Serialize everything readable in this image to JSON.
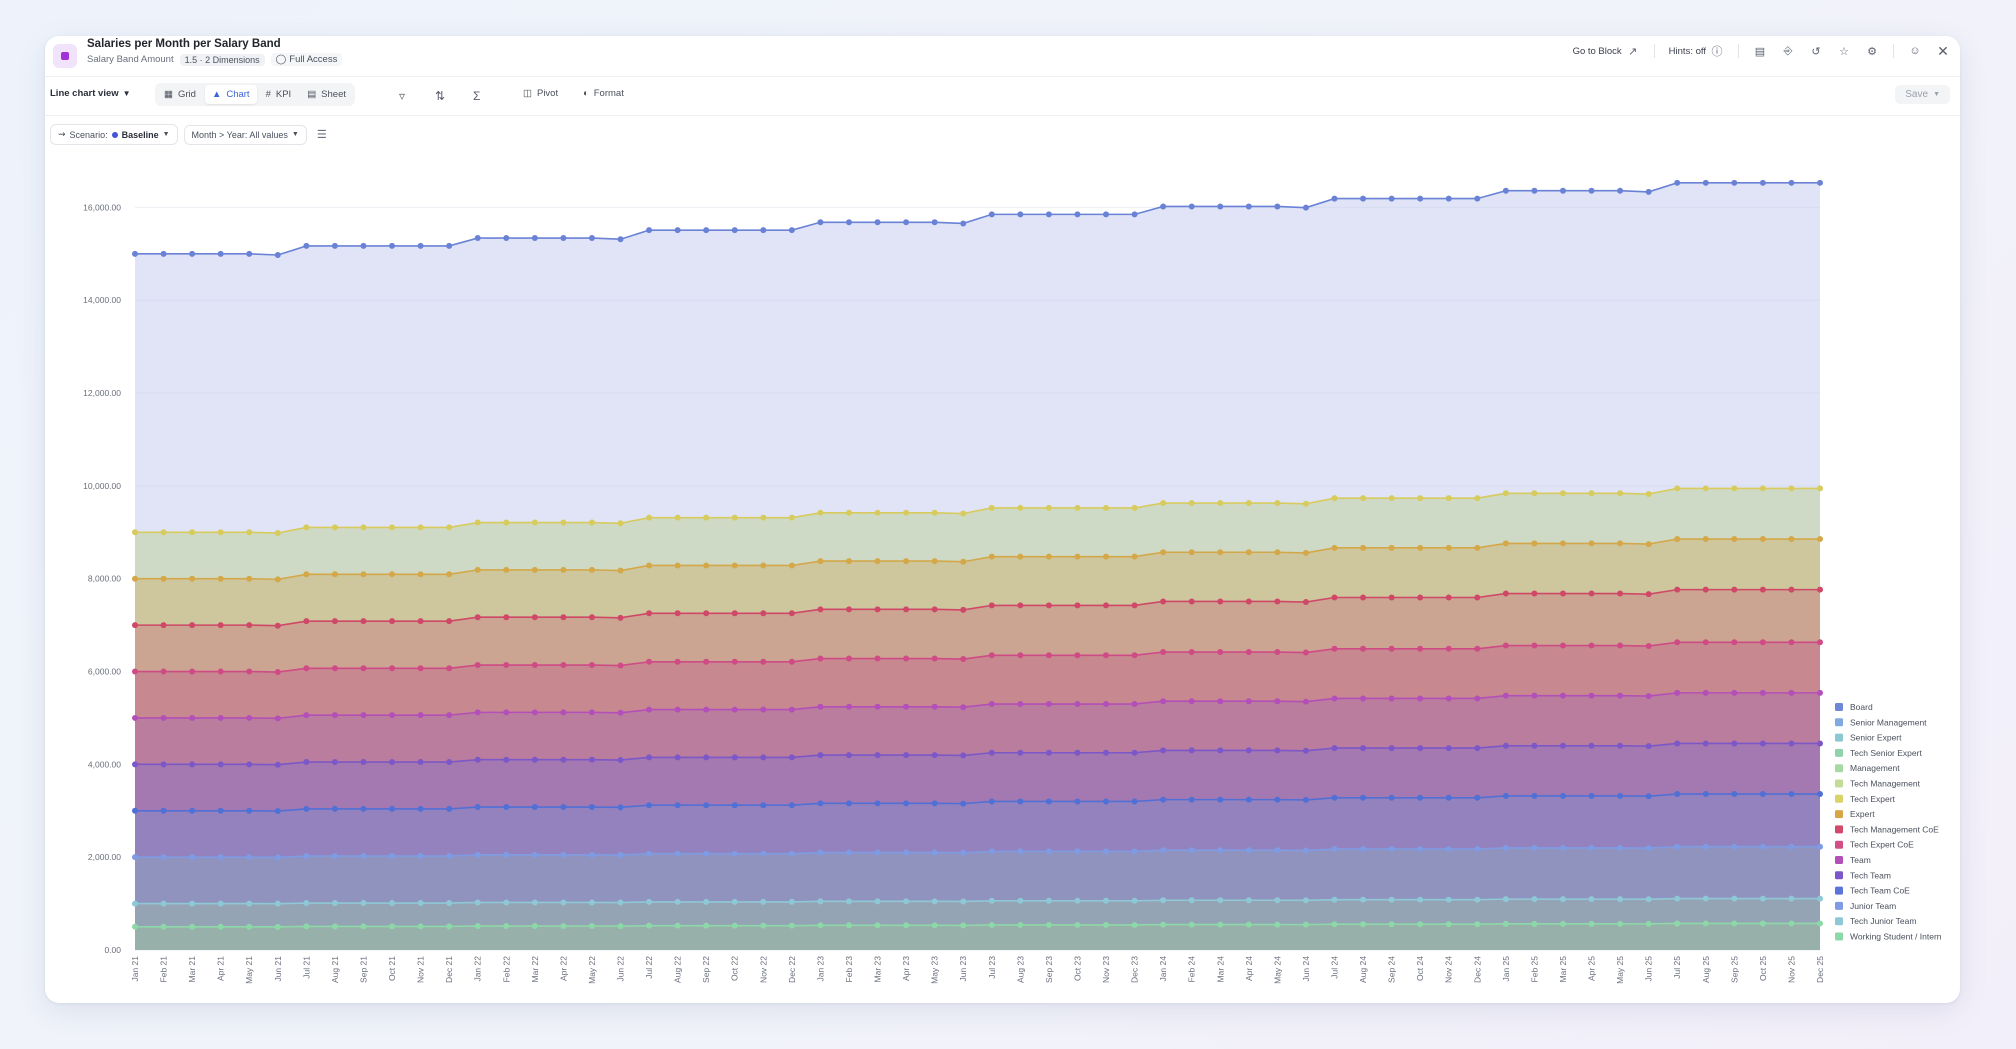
{
  "header": {
    "title": "Salaries per Month per Salary Band",
    "subtitle_prefix": "Salary Band Amount",
    "dims": "1.5 · 2 Dimensions",
    "access": "Full Access"
  },
  "top_tools": {
    "go_to_block": "Go to Block",
    "hints": "Hints: off",
    "icons": [
      "arrow-out-icon",
      "info-icon",
      "note-icon",
      "share-icon",
      "history-icon",
      "star-icon",
      "gear-icon",
      "user-settings-icon",
      "close-icon"
    ]
  },
  "toolbar": {
    "view_select": "Line chart view",
    "tabs": [
      {
        "label": "Grid",
        "icon": "grid-icon"
      },
      {
        "label": "Chart",
        "icon": "chart-icon"
      },
      {
        "label": "KPI",
        "icon": "hash-icon"
      },
      {
        "label": "Sheet",
        "icon": "sheet-icon"
      }
    ],
    "pivot": "Pivot",
    "format": "Format",
    "save": "Save"
  },
  "filters": {
    "scenario_label": "Scenario:",
    "scenario_value": "Baseline",
    "month_filter": "Month > Year: All values"
  },
  "colors": {
    "accent": "#3b63d9",
    "series": [
      "#6f87d6",
      "#7fa9df",
      "#8cc8d2",
      "#8fd3ad",
      "#a8d9a3",
      "#c4dc98",
      "#d9d36a",
      "#d8a546",
      "#d24a6b",
      "#d14f86",
      "#b250b8",
      "#7d57c9",
      "#5a74d9",
      "#7f9be3",
      "#8ec8d6",
      "#8dd8a8"
    ]
  },
  "chart_data": {
    "type": "area",
    "stacked": true,
    "x": [
      "Jan 21",
      "Feb 21",
      "Mar 21",
      "Apr 21",
      "May 21",
      "Jun 21",
      "Jul 21",
      "Aug 21",
      "Sep 21",
      "Oct 21",
      "Nov 21",
      "Dec 21",
      "Jan 22",
      "Feb 22",
      "Mar 22",
      "Apr 22",
      "May 22",
      "Jun 22",
      "Jul 22",
      "Aug 22",
      "Sep 22",
      "Oct 22",
      "Nov 22",
      "Dec 22",
      "Jan 23",
      "Feb 23",
      "Mar 23",
      "Apr 23",
      "May 23",
      "Jun 23",
      "Jul 23",
      "Aug 23",
      "Sep 23",
      "Oct 23",
      "Nov 23",
      "Dec 23",
      "Jan 24",
      "Feb 24",
      "Mar 24",
      "Apr 24",
      "May 24",
      "Jun 24",
      "Jul 24",
      "Aug 24",
      "Sep 24",
      "Oct 24",
      "Nov 24",
      "Dec 24",
      "Jan 25",
      "Feb 25",
      "Mar 25",
      "Apr 25",
      "May 25",
      "Jun 25",
      "Jul 25",
      "Aug 25",
      "Sep 25",
      "Oct 25",
      "Nov 25",
      "Dec 25"
    ],
    "ylim": [
      0,
      17000
    ],
    "yticks": [
      "0.00",
      "2,000.00",
      "4,000.00",
      "6,000.00",
      "8,000.00",
      "10,000.00",
      "12,000.00",
      "14,000.00",
      "16,000.00"
    ],
    "ytick_values": [
      0,
      2000,
      4000,
      6000,
      8000,
      10000,
      12000,
      14000,
      16000
    ],
    "legend_position": "right",
    "legend": [
      "Board",
      "Senior Management",
      "Senior Expert",
      "Tech Senior Expert",
      "Management",
      "Tech Management",
      "Tech Expert",
      "Expert",
      "Tech Management CoE",
      "Tech Expert CoE",
      "Team",
      "Tech Team",
      "Tech Team CoE",
      "Junior Team",
      "Tech Junior Team",
      "Working Student / Intern"
    ],
    "cumulative_lines": [
      {
        "name": "Board",
        "start": 15000,
        "step": 170
      },
      {
        "name": "Tech Expert",
        "start": 9000,
        "step": 105
      },
      {
        "name": "Expert",
        "start": 8000,
        "step": 95
      },
      {
        "name": "Tech Management CoE",
        "start": 7000,
        "step": 85
      },
      {
        "name": "Tech Expert CoE",
        "start": 6000,
        "step": 70
      },
      {
        "name": "Team",
        "start": 5000,
        "step": 60
      },
      {
        "name": "Tech Team",
        "start": 4000,
        "step": 50
      },
      {
        "name": "Tech Team CoE",
        "start": 3000,
        "step": 40
      },
      {
        "name": "Junior Team",
        "start": 2000,
        "step": 25
      },
      {
        "name": "Tech Junior Team",
        "start": 1000,
        "step": 12
      },
      {
        "name": "Working Student / Intern",
        "start": 500,
        "step": 8
      }
    ]
  }
}
